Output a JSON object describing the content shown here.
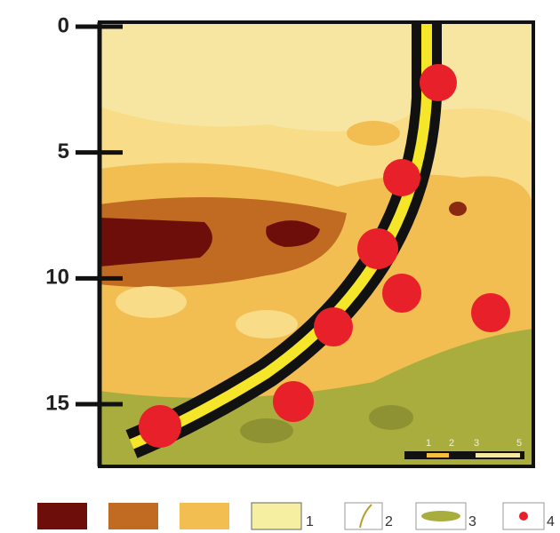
{
  "axis": {
    "ticks": [
      0,
      5,
      10,
      15
    ]
  },
  "scale_bar": {
    "labels": [
      "1",
      "2",
      "3",
      "5"
    ]
  },
  "legend": {
    "labels": [
      "1",
      "2",
      "3",
      "4"
    ]
  }
}
